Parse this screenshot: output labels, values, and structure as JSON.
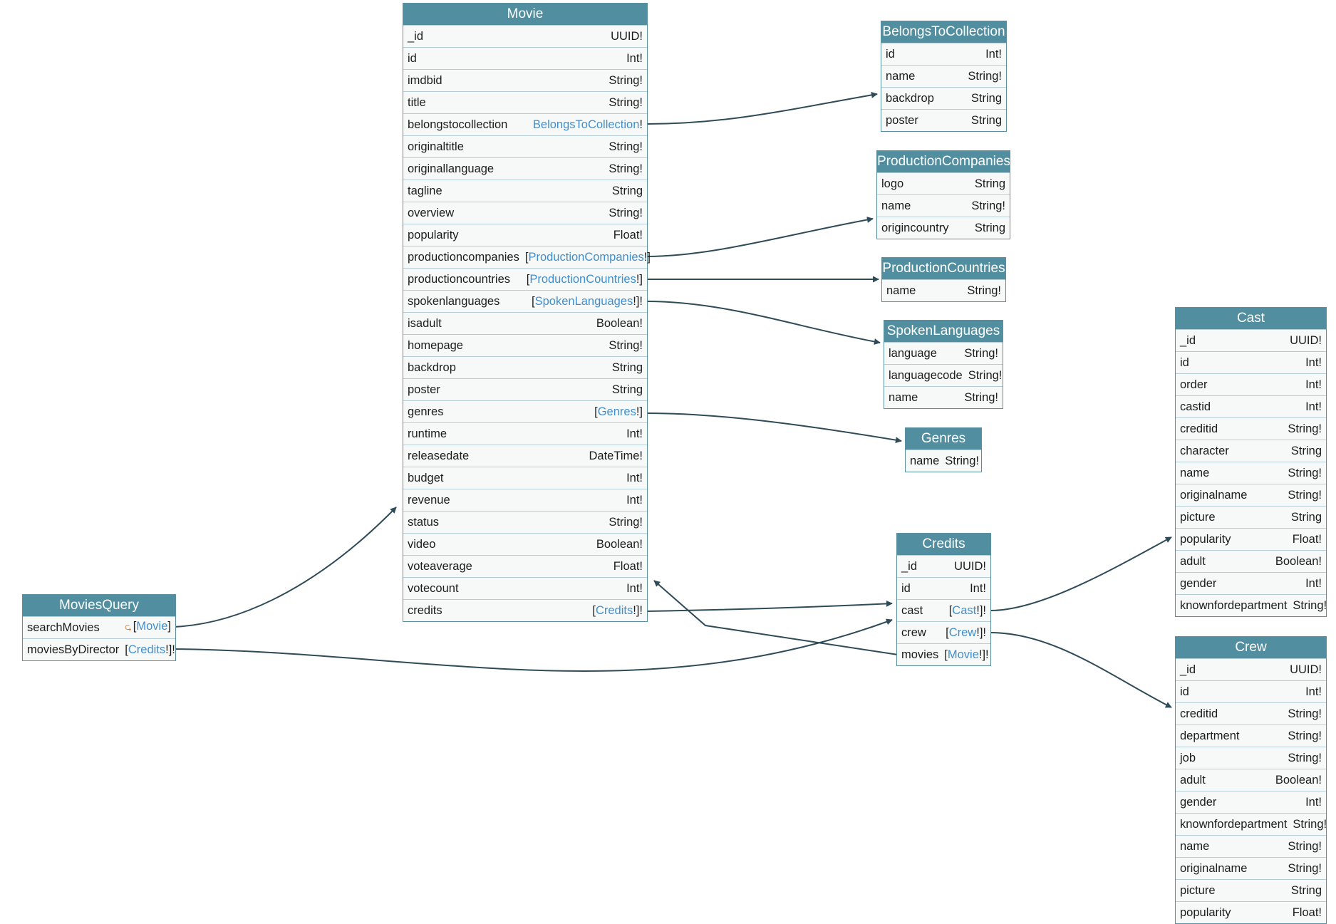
{
  "colors": {
    "header": "#518e9f",
    "edge": "#2f4b58",
    "link_type": "#3f8fd0",
    "arg_icon": "#e07a2b"
  },
  "nodes": {
    "moviesquery": {
      "title": "MoviesQuery",
      "fields": [
        {
          "name": "searchMovies",
          "pre": "[",
          "ref": "Movie",
          "post": "]",
          "args_icon": "arguments-icon"
        },
        {
          "name": "moviesByDirector",
          "pre": "[",
          "ref": "Credits",
          "post": "!]!"
        }
      ]
    },
    "movie": {
      "title": "Movie",
      "fields": [
        {
          "name": "_id",
          "type": "UUID!"
        },
        {
          "name": "id",
          "type": "Int!"
        },
        {
          "name": "imdbid",
          "type": "String!"
        },
        {
          "name": "title",
          "type": "String!"
        },
        {
          "name": "belongstocollection",
          "pre": "",
          "ref": "BelongsToCollection",
          "post": "!"
        },
        {
          "name": "originaltitle",
          "type": "String!"
        },
        {
          "name": "originallanguage",
          "type": "String!"
        },
        {
          "name": "tagline",
          "type": "String"
        },
        {
          "name": "overview",
          "type": "String!"
        },
        {
          "name": "popularity",
          "type": "Float!"
        },
        {
          "name": "productioncompanies",
          "pre": "[",
          "ref": "ProductionCompanies",
          "post": "!]"
        },
        {
          "name": "productioncountries",
          "pre": "[",
          "ref": "ProductionCountries",
          "post": "!]"
        },
        {
          "name": "spokenlanguages",
          "pre": "[",
          "ref": "SpokenLanguages",
          "post": "!]!"
        },
        {
          "name": "isadult",
          "type": "Boolean!"
        },
        {
          "name": "homepage",
          "type": "String!"
        },
        {
          "name": "backdrop",
          "type": "String"
        },
        {
          "name": "poster",
          "type": "String"
        },
        {
          "name": "genres",
          "pre": "[",
          "ref": "Genres",
          "post": "!]"
        },
        {
          "name": "runtime",
          "type": "Int!"
        },
        {
          "name": "releasedate",
          "type": "DateTime!"
        },
        {
          "name": "budget",
          "type": "Int!"
        },
        {
          "name": "revenue",
          "type": "Int!"
        },
        {
          "name": "status",
          "type": "String!"
        },
        {
          "name": "video",
          "type": "Boolean!"
        },
        {
          "name": "voteaverage",
          "type": "Float!"
        },
        {
          "name": "votecount",
          "type": "Int!"
        },
        {
          "name": "credits",
          "pre": "[",
          "ref": "Credits",
          "post": "!]!"
        }
      ]
    },
    "belongstocollection": {
      "title": "BelongsToCollection",
      "fields": [
        {
          "name": "id",
          "type": "Int!"
        },
        {
          "name": "name",
          "type": "String!"
        },
        {
          "name": "backdrop",
          "type": "String"
        },
        {
          "name": "poster",
          "type": "String"
        }
      ]
    },
    "productioncompanies": {
      "title": "ProductionCompanies",
      "fields": [
        {
          "name": "logo",
          "type": "String"
        },
        {
          "name": "name",
          "type": "String!"
        },
        {
          "name": "origincountry",
          "type": "String"
        }
      ]
    },
    "productioncountries": {
      "title": "ProductionCountries",
      "fields": [
        {
          "name": "name",
          "type": "String!"
        }
      ]
    },
    "spokenlanguages": {
      "title": "SpokenLanguages",
      "fields": [
        {
          "name": "language",
          "type": "String!"
        },
        {
          "name": "languagecode",
          "type": "String!"
        },
        {
          "name": "name",
          "type": "String!"
        }
      ]
    },
    "genres": {
      "title": "Genres",
      "fields": [
        {
          "name": "name",
          "type": "String!"
        }
      ]
    },
    "credits": {
      "title": "Credits",
      "fields": [
        {
          "name": "_id",
          "type": "UUID!"
        },
        {
          "name": "id",
          "type": "Int!"
        },
        {
          "name": "cast",
          "pre": "[",
          "ref": "Cast",
          "post": "!]!"
        },
        {
          "name": "crew",
          "pre": "[",
          "ref": "Crew",
          "post": "!]!"
        },
        {
          "name": "movies",
          "pre": "[",
          "ref": "Movie",
          "post": "!]!"
        }
      ]
    },
    "cast": {
      "title": "Cast",
      "fields": [
        {
          "name": "_id",
          "type": "UUID!"
        },
        {
          "name": "id",
          "type": "Int!"
        },
        {
          "name": "order",
          "type": "Int!"
        },
        {
          "name": "castid",
          "type": "Int!"
        },
        {
          "name": "creditid",
          "type": "String!"
        },
        {
          "name": "character",
          "type": "String"
        },
        {
          "name": "name",
          "type": "String!"
        },
        {
          "name": "originalname",
          "type": "String!"
        },
        {
          "name": "picture",
          "type": "String"
        },
        {
          "name": "popularity",
          "type": "Float!"
        },
        {
          "name": "adult",
          "type": "Boolean!"
        },
        {
          "name": "gender",
          "type": "Int!"
        },
        {
          "name": "knownfordepartment",
          "type": "String!"
        }
      ]
    },
    "crew": {
      "title": "Crew",
      "fields": [
        {
          "name": "_id",
          "type": "UUID!"
        },
        {
          "name": "id",
          "type": "Int!"
        },
        {
          "name": "creditid",
          "type": "String!"
        },
        {
          "name": "department",
          "type": "String!"
        },
        {
          "name": "job",
          "type": "String!"
        },
        {
          "name": "adult",
          "type": "Boolean!"
        },
        {
          "name": "gender",
          "type": "Int!"
        },
        {
          "name": "knownfordepartment",
          "type": "String!"
        },
        {
          "name": "name",
          "type": "String!"
        },
        {
          "name": "originalname",
          "type": "String!"
        },
        {
          "name": "picture",
          "type": "String"
        },
        {
          "name": "popularity",
          "type": "Float!"
        }
      ]
    }
  }
}
